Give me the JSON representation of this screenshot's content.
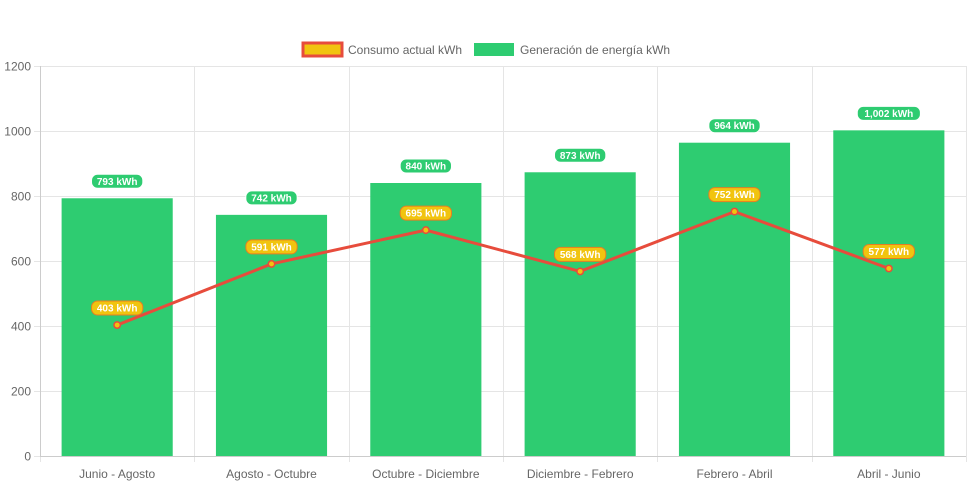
{
  "chart_data": {
    "type": "bar",
    "categories": [
      "Junio - Agosto",
      "Agosto - Octubre",
      "Octubre - Diciembre",
      "Diciembre - Febrero",
      "Febrero - Abril",
      "Abril - Junio"
    ],
    "series": [
      {
        "name": "Consumo actual kWh",
        "type": "line",
        "values": [
          403,
          591,
          695,
          568,
          752,
          577
        ],
        "labels": [
          "403 kWh",
          "591 kWh",
          "695 kWh",
          "568 kWh",
          "752 kWh",
          "577 kWh"
        ],
        "color": "#e74c3c",
        "fill_color": "#f1c40f"
      },
      {
        "name": "Generación de energía kWh",
        "type": "bar",
        "values": [
          793,
          742,
          840,
          873,
          964,
          1002
        ],
        "labels": [
          "793 kWh",
          "742 kWh",
          "840 kWh",
          "873 kWh",
          "964 kWh",
          "1,002 kWh"
        ],
        "color": "#2ecc71"
      }
    ],
    "yticks": [
      "0",
      "200",
      "400",
      "600",
      "800",
      "1000",
      "1200"
    ],
    "ylim": [
      0,
      1200
    ],
    "title": "",
    "xlabel": "",
    "ylabel": "",
    "grid": true,
    "legend_position": "top"
  }
}
